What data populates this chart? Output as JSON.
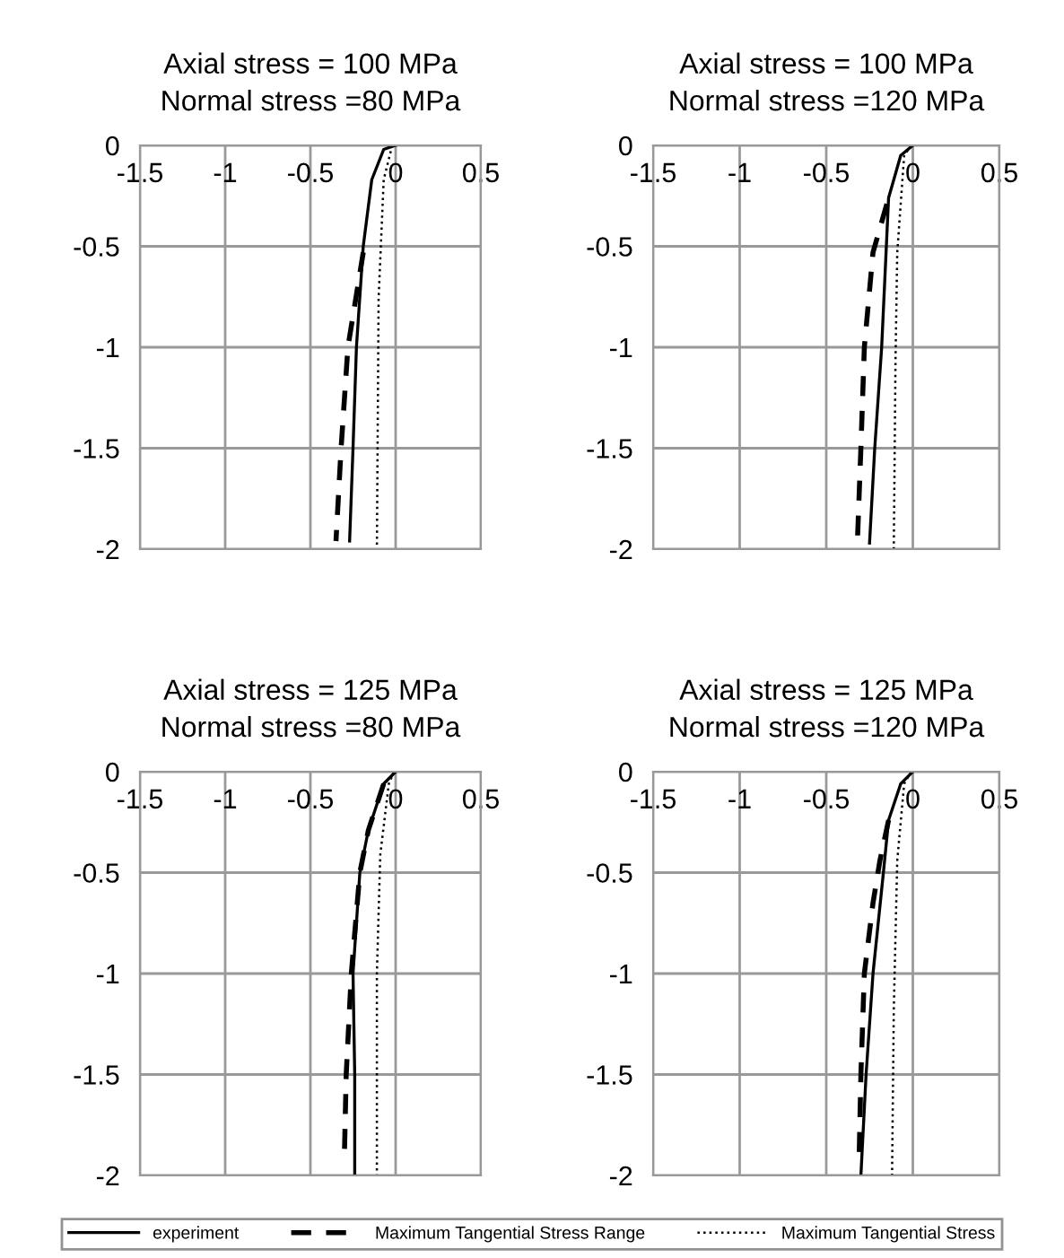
{
  "chart_data": [
    {
      "type": "line",
      "title": "Axial stress = 100 MPa\nNormal stress =80 MPa",
      "xlim": [
        -1.5,
        0.5
      ],
      "ylim": [
        -2,
        0
      ],
      "xticks": [
        -1.5,
        -1,
        -0.5,
        0,
        0.5
      ],
      "yticks": [
        0,
        -0.5,
        -1,
        -1.5,
        -2
      ],
      "grid": true,
      "legend": "bottom",
      "series": [
        {
          "name": "experiment",
          "color": "#000000",
          "line_style": "solid",
          "x": [
            0,
            -0.07,
            -0.14,
            -0.19,
            -0.23,
            -0.25,
            -0.27
          ],
          "values": [
            0,
            -0.02,
            -0.17,
            -0.5,
            -1.0,
            -1.5,
            -1.96
          ]
        },
        {
          "name": "Maximum Tangential Stress Range",
          "color": "#000000",
          "line_style": "dashed",
          "x": [
            -0.19,
            -0.28,
            -0.32,
            -0.35
          ],
          "values": [
            -0.53,
            -1.0,
            -1.5,
            -1.96
          ]
        },
        {
          "name": "Maximum Tangential Stress",
          "color": "#000000",
          "line_style": "dotted",
          "x": [
            -0.02,
            -0.07,
            -0.1,
            -0.11
          ],
          "values": [
            0,
            -0.17,
            -0.76,
            -2.0
          ]
        }
      ]
    },
    {
      "type": "line",
      "title": "Axial stress = 100 MPa\nNormal stress =120 MPa",
      "xlim": [
        -1.5,
        0.5
      ],
      "ylim": [
        -2,
        0
      ],
      "xticks": [
        -1.5,
        -1,
        -0.5,
        0,
        0.5
      ],
      "yticks": [
        0,
        -0.5,
        -1,
        -1.5,
        -2
      ],
      "grid": true,
      "legend": "bottom",
      "series": [
        {
          "name": "experiment",
          "color": "#000000",
          "line_style": "solid",
          "x": [
            0,
            -0.07,
            -0.14,
            -0.18,
            -0.22,
            -0.25
          ],
          "values": [
            0,
            -0.05,
            -0.26,
            -1.0,
            -1.5,
            -1.97
          ]
        },
        {
          "name": "Maximum Tangential Stress Range",
          "color": "#000000",
          "line_style": "dashed",
          "x": [
            -0.15,
            -0.23,
            -0.28,
            -0.3,
            -0.32
          ],
          "values": [
            -0.29,
            -0.53,
            -1.0,
            -1.5,
            -1.96
          ]
        },
        {
          "name": "Maximum Tangential Stress",
          "color": "#000000",
          "line_style": "dotted",
          "x": [
            -0.01,
            -0.05,
            -0.09,
            -0.1,
            -0.11
          ],
          "values": [
            0,
            -0.05,
            -0.53,
            -1.06,
            -2.0
          ]
        }
      ]
    },
    {
      "type": "line",
      "title": "Axial stress = 125 MPa\nNormal stress =80 MPa",
      "xlim": [
        -1.5,
        0.5
      ],
      "ylim": [
        -2,
        0
      ],
      "xticks": [
        -1.5,
        -1,
        -0.5,
        0,
        0.5
      ],
      "yticks": [
        0,
        -0.5,
        -1,
        -1.5,
        -2
      ],
      "grid": true,
      "legend": "bottom",
      "series": [
        {
          "name": "experiment",
          "color": "#000000",
          "line_style": "solid",
          "x": [
            0,
            -0.07,
            -0.16,
            -0.21,
            -0.25,
            -0.24,
            -0.24
          ],
          "values": [
            0,
            -0.06,
            -0.29,
            -0.5,
            -1.0,
            -1.5,
            -1.99
          ]
        },
        {
          "name": "Maximum Tangential Stress Range",
          "color": "#000000",
          "line_style": "dashed",
          "x": [
            -0.07,
            -0.16,
            -0.21,
            -0.26,
            -0.29,
            -0.3
          ],
          "values": [
            -0.06,
            -0.29,
            -0.5,
            -1.0,
            -1.5,
            -1.88
          ]
        },
        {
          "name": "Maximum Tangential Stress",
          "color": "#000000",
          "line_style": "dotted",
          "x": [
            -0.01,
            -0.04,
            -0.09,
            -0.11,
            -0.11
          ],
          "values": [
            0,
            -0.06,
            -0.41,
            -1.0,
            -2.0
          ]
        }
      ]
    },
    {
      "type": "line",
      "title": "Axial stress = 125 MPa\nNormal stress =120 MPa",
      "xlim": [
        -1.5,
        0.5
      ],
      "ylim": [
        -2,
        0
      ],
      "xticks": [
        -1.5,
        -1,
        -0.5,
        0,
        0.5
      ],
      "yticks": [
        0,
        -0.5,
        -1,
        -1.5,
        -2
      ],
      "grid": true,
      "legend": "bottom",
      "series": [
        {
          "name": "experiment",
          "color": "#000000",
          "line_style": "solid",
          "x": [
            0,
            -0.07,
            -0.14,
            -0.17,
            -0.23,
            -0.27,
            -0.3
          ],
          "values": [
            0,
            -0.06,
            -0.24,
            -0.5,
            -1.0,
            -1.5,
            -2.0
          ]
        },
        {
          "name": "Maximum Tangential Stress Range",
          "color": "#000000",
          "line_style": "dashed",
          "x": [
            -0.14,
            -0.19,
            -0.23,
            -0.28,
            -0.3,
            -0.31
          ],
          "values": [
            -0.24,
            -0.44,
            -0.65,
            -1.0,
            -1.5,
            -1.91
          ]
        },
        {
          "name": "Maximum Tangential Stress",
          "color": "#000000",
          "line_style": "dotted",
          "x": [
            -0.01,
            -0.05,
            -0.09,
            -0.11,
            -0.12
          ],
          "values": [
            0,
            -0.06,
            -0.44,
            -1.18,
            -2.0
          ]
        }
      ]
    }
  ]
}
